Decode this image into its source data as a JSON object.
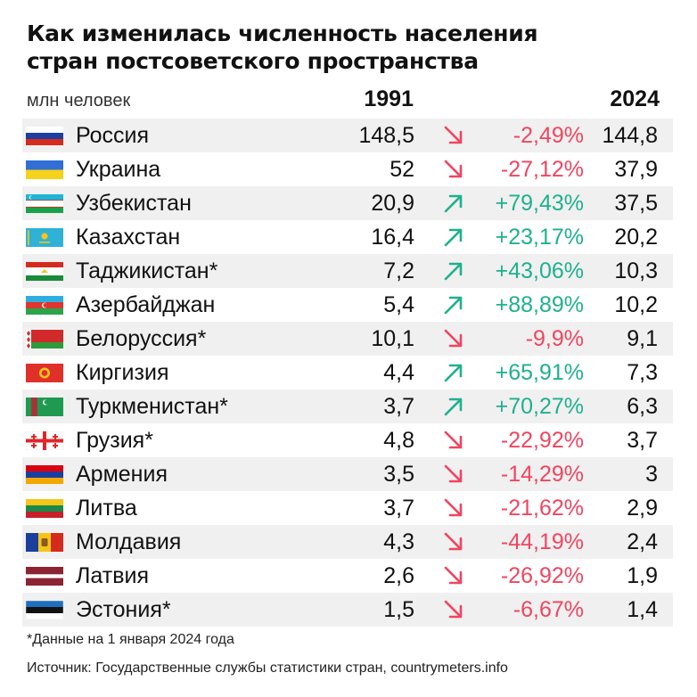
{
  "title_line1": "Как изменилась численность населения",
  "title_line2": "стран постсоветского пространства",
  "unit": "млн человек",
  "year1": "1991",
  "year2": "2024",
  "colors": {
    "up": "#1fb08f",
    "down": "#f0455f",
    "row_alt": "#f0f0f0"
  },
  "chart_data": {
    "type": "table",
    "columns": [
      "",
      "1991",
      "",
      "2024"
    ],
    "rows": [
      {
        "country": "Россия",
        "flag": "russia-flag-icon",
        "v1991": "148,5",
        "change": "-2,49%",
        "dir": "down",
        "v2024": "144,8"
      },
      {
        "country": "Украина",
        "flag": "ukraine-flag-icon",
        "v1991": "52",
        "change": "-27,12%",
        "dir": "down",
        "v2024": "37,9"
      },
      {
        "country": "Узбекистан",
        "flag": "uzbekistan-flag-icon",
        "v1991": "20,9",
        "change": "+79,43%",
        "dir": "up",
        "v2024": "37,5"
      },
      {
        "country": "Казахстан",
        "flag": "kazakhstan-flag-icon",
        "v1991": "16,4",
        "change": "+23,17%",
        "dir": "up",
        "v2024": "20,2"
      },
      {
        "country": "Таджикистан*",
        "flag": "tajikistan-flag-icon",
        "v1991": "7,2",
        "change": "+43,06%",
        "dir": "up",
        "v2024": "10,3"
      },
      {
        "country": "Азербайджан",
        "flag": "azerbaijan-flag-icon",
        "v1991": "5,4",
        "change": "+88,89%",
        "dir": "up",
        "v2024": "10,2"
      },
      {
        "country": "Белоруссия*",
        "flag": "belarus-flag-icon",
        "v1991": "10,1",
        "change": "-9,9%",
        "dir": "down",
        "v2024": "9,1"
      },
      {
        "country": "Киргизия",
        "flag": "kyrgyzstan-flag-icon",
        "v1991": "4,4",
        "change": "+65,91%",
        "dir": "up",
        "v2024": "7,3"
      },
      {
        "country": "Туркменистан*",
        "flag": "turkmenistan-flag-icon",
        "v1991": "3,7",
        "change": "+70,27%",
        "dir": "up",
        "v2024": "6,3"
      },
      {
        "country": "Грузия*",
        "flag": "georgia-flag-icon",
        "v1991": "4,8",
        "change": "-22,92%",
        "dir": "down",
        "v2024": "3,7"
      },
      {
        "country": "Армения",
        "flag": "armenia-flag-icon",
        "v1991": "3,5",
        "change": "-14,29%",
        "dir": "down",
        "v2024": "3"
      },
      {
        "country": "Литва",
        "flag": "lithuania-flag-icon",
        "v1991": "3,7",
        "change": "-21,62%",
        "dir": "down",
        "v2024": "2,9"
      },
      {
        "country": "Молдавия",
        "flag": "moldova-flag-icon",
        "v1991": "4,3",
        "change": "-44,19%",
        "dir": "down",
        "v2024": "2,4"
      },
      {
        "country": "Латвия",
        "flag": "latvia-flag-icon",
        "v1991": "2,6",
        "change": "-26,92%",
        "dir": "down",
        "v2024": "1,9"
      },
      {
        "country": "Эстония*",
        "flag": "estonia-flag-icon",
        "v1991": "1,5",
        "change": "-6,67%",
        "dir": "down",
        "v2024": "1,4"
      }
    ]
  },
  "footnote": "*Данные на 1 января 2024 года",
  "source": "Источник: Государственные службы статистики стран, countrymeters.info"
}
